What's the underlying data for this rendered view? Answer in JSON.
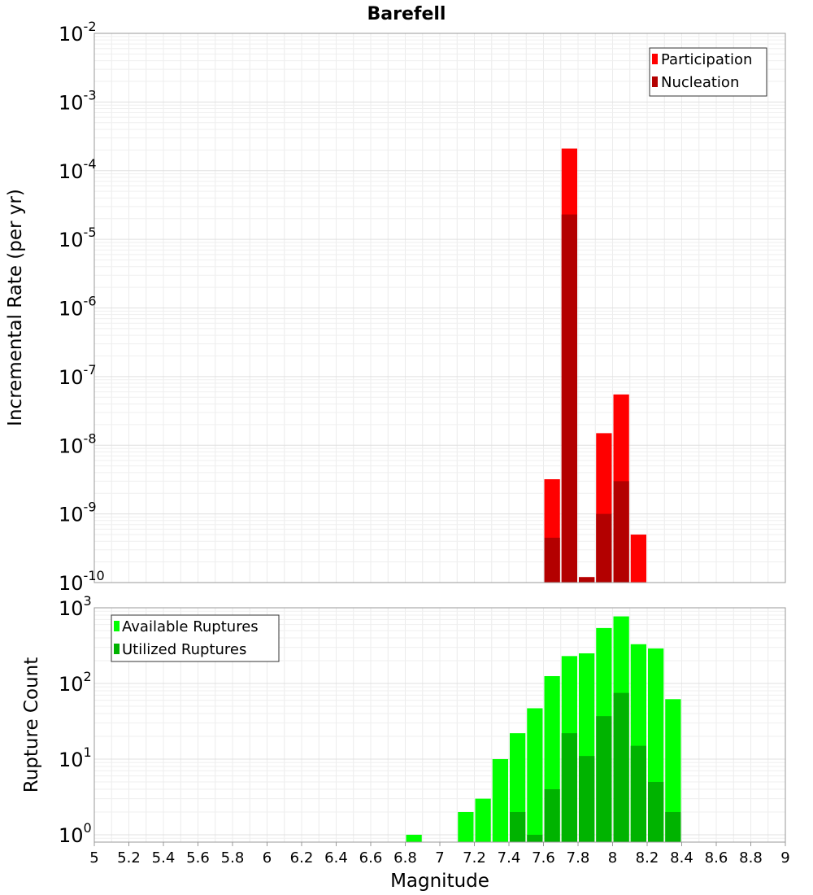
{
  "chart_data": [
    {
      "type": "bar",
      "title": "Barefell",
      "xlabel": "",
      "ylabel": "Incremental Rate (per yr)",
      "y_scale": "log",
      "ylim": [
        1e-10,
        0.01
      ],
      "xlim": [
        5,
        9
      ],
      "y_ticks": [
        {
          "base": "10",
          "exp": "-10",
          "value": 1e-10
        },
        {
          "base": "10",
          "exp": "-9",
          "value": 1e-09
        },
        {
          "base": "10",
          "exp": "-8",
          "value": 1e-08
        },
        {
          "base": "10",
          "exp": "-7",
          "value": 1e-07
        },
        {
          "base": "10",
          "exp": "-6",
          "value": 1e-06
        },
        {
          "base": "10",
          "exp": "-5",
          "value": 1e-05
        },
        {
          "base": "10",
          "exp": "-4",
          "value": 0.0001
        },
        {
          "base": "10",
          "exp": "-3",
          "value": 0.001
        },
        {
          "base": "10",
          "exp": "-2",
          "value": 0.01
        }
      ],
      "legend_position": "top-right",
      "grid": true,
      "series": [
        {
          "name": "Participation",
          "color": "#ff0000",
          "x": [
            7.65,
            7.75,
            7.85,
            7.95,
            8.05,
            8.15
          ],
          "values": [
            3.2e-09,
            0.00021,
            1.2e-10,
            1.5e-08,
            5.5e-08,
            5e-10
          ]
        },
        {
          "name": "Nucleation",
          "color": "#b30000",
          "x": [
            7.65,
            7.75,
            7.85,
            7.95,
            8.05
          ],
          "values": [
            4.5e-10,
            2.3e-05,
            1.2e-10,
            1e-09,
            3e-09
          ]
        }
      ]
    },
    {
      "type": "bar",
      "title": "",
      "xlabel": "Magnitude",
      "ylabel": "Rupture Count",
      "y_scale": "log",
      "ylim": [
        0.8,
        1000
      ],
      "xlim": [
        5,
        9
      ],
      "y_ticks": [
        {
          "base": "10",
          "exp": "0",
          "value": 1
        },
        {
          "base": "10",
          "exp": "1",
          "value": 10
        },
        {
          "base": "10",
          "exp": "2",
          "value": 100
        },
        {
          "base": "10",
          "exp": "3",
          "value": 1000
        }
      ],
      "x_tick_labels": [
        "5",
        "5.2",
        "5.4",
        "5.6",
        "5.8",
        "6",
        "6.2",
        "6.4",
        "6.6",
        "6.8",
        "7",
        "7.2",
        "7.4",
        "7.6",
        "7.8",
        "8",
        "8.2",
        "8.4",
        "8.6",
        "8.8",
        "9"
      ],
      "legend_position": "top-left",
      "grid": true,
      "series": [
        {
          "name": "Available Ruptures",
          "color": "#00ff00",
          "x": [
            6.85,
            7.15,
            7.25,
            7.35,
            7.45,
            7.55,
            7.65,
            7.75,
            7.85,
            7.95,
            8.05,
            8.15,
            8.25,
            8.35
          ],
          "values": [
            1,
            2,
            3,
            10,
            22,
            47,
            125,
            230,
            250,
            540,
            770,
            330,
            290,
            62
          ]
        },
        {
          "name": "Utilized Ruptures",
          "color": "#00b300",
          "x": [
            7.45,
            7.55,
            7.65,
            7.75,
            7.85,
            7.95,
            8.05,
            8.15,
            8.25,
            8.35
          ],
          "values": [
            2,
            1,
            4,
            22,
            11,
            37,
            75,
            15,
            5,
            2
          ]
        }
      ]
    }
  ]
}
